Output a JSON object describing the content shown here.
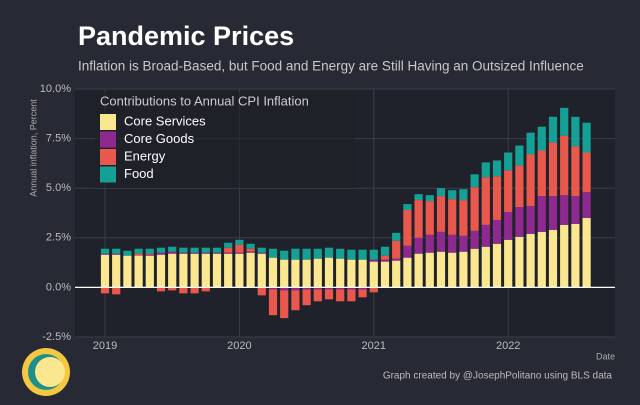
{
  "chart_data": {
    "type": "stacked_bar",
    "title": "Pandemic Prices",
    "subtitle": "Inflation is Broad-Based, but Food and Energy are Still Having an Outsized Influence",
    "y_label": "Annual inflation, Percent",
    "x_label": "Date",
    "legend_title": "Contributions to Annual CPI Inflation",
    "caption": "Graph created by @JosephPolitano using BLS data",
    "legend": "top-left",
    "grid": true,
    "categories": [
      "2019",
      null,
      null,
      null,
      null,
      null,
      null,
      null,
      null,
      null,
      null,
      null,
      "2020",
      null,
      null,
      null,
      null,
      null,
      null,
      null,
      null,
      null,
      null,
      null,
      "2021",
      null,
      null,
      null,
      null,
      null,
      null,
      null,
      null,
      null,
      null,
      null,
      "2022",
      null,
      null,
      null,
      null,
      null,
      null,
      null
    ],
    "ylim": [
      -2.5,
      10
    ],
    "yticks": [
      {
        "value": -2.5,
        "label": "-2.5%"
      },
      {
        "value": 0,
        "label": "0.0%"
      },
      {
        "value": 2.5,
        "label": "2.5%"
      },
      {
        "value": 5,
        "label": "5.0%"
      },
      {
        "value": 7.5,
        "label": "7.5%"
      },
      {
        "value": 10,
        "label": "10.0%"
      }
    ],
    "series": [
      {
        "name": "Core Services",
        "color": "#fbe790",
        "values": [
          1.65,
          1.65,
          1.6,
          1.6,
          1.6,
          1.65,
          1.7,
          1.7,
          1.7,
          1.7,
          1.7,
          1.7,
          1.7,
          1.75,
          1.7,
          1.5,
          1.4,
          1.4,
          1.4,
          1.45,
          1.5,
          1.45,
          1.4,
          1.4,
          1.3,
          1.3,
          1.35,
          1.5,
          1.7,
          1.75,
          1.8,
          1.75,
          1.8,
          1.95,
          2.05,
          2.2,
          2.4,
          2.55,
          2.7,
          2.8,
          2.9,
          3.15,
          3.2,
          3.5
        ]
      },
      {
        "name": "Core Goods",
        "color": "#8e2a8f",
        "values": [
          0.05,
          0.05,
          0,
          0,
          0.05,
          0.1,
          0.1,
          0.05,
          0.05,
          0.05,
          0.05,
          0.05,
          0.05,
          0.05,
          0.05,
          -0.1,
          -0.15,
          -0.15,
          -0.1,
          -0.1,
          -0.1,
          -0.1,
          -0.1,
          -0.1,
          0.1,
          0.1,
          0.1,
          0.6,
          0.8,
          0.9,
          1.0,
          0.9,
          0.8,
          0.9,
          1.1,
          1.2,
          1.4,
          1.5,
          1.4,
          1.8,
          1.7,
          1.5,
          1.4,
          1.3
        ]
      },
      {
        "name": "Energy",
        "color": "#e8584c",
        "values": [
          -0.3,
          -0.35,
          0,
          0.1,
          0.05,
          -0.2,
          -0.15,
          -0.3,
          -0.3,
          -0.2,
          0,
          0.25,
          0.4,
          0.15,
          -0.4,
          -1.3,
          -1.4,
          -1.0,
          -0.8,
          -0.6,
          -0.5,
          -0.6,
          -0.6,
          -0.4,
          -0.25,
          0.2,
          0.9,
          1.8,
          1.9,
          1.7,
          1.8,
          1.8,
          1.8,
          2.2,
          2.4,
          2.2,
          2.1,
          2.1,
          2.6,
          2.3,
          2.7,
          3.0,
          2.5,
          2.0
        ]
      },
      {
        "name": "Food",
        "color": "#14a095",
        "values": [
          0.25,
          0.25,
          0.25,
          0.25,
          0.25,
          0.25,
          0.25,
          0.25,
          0.25,
          0.25,
          0.25,
          0.25,
          0.25,
          0.25,
          0.25,
          0.45,
          0.45,
          0.55,
          0.55,
          0.5,
          0.5,
          0.5,
          0.5,
          0.5,
          0.5,
          0.45,
          0.4,
          0.3,
          0.3,
          0.3,
          0.4,
          0.45,
          0.55,
          0.65,
          0.75,
          0.8,
          0.9,
          1.0,
          1.1,
          1.2,
          1.3,
          1.4,
          1.5,
          1.5
        ]
      }
    ]
  }
}
